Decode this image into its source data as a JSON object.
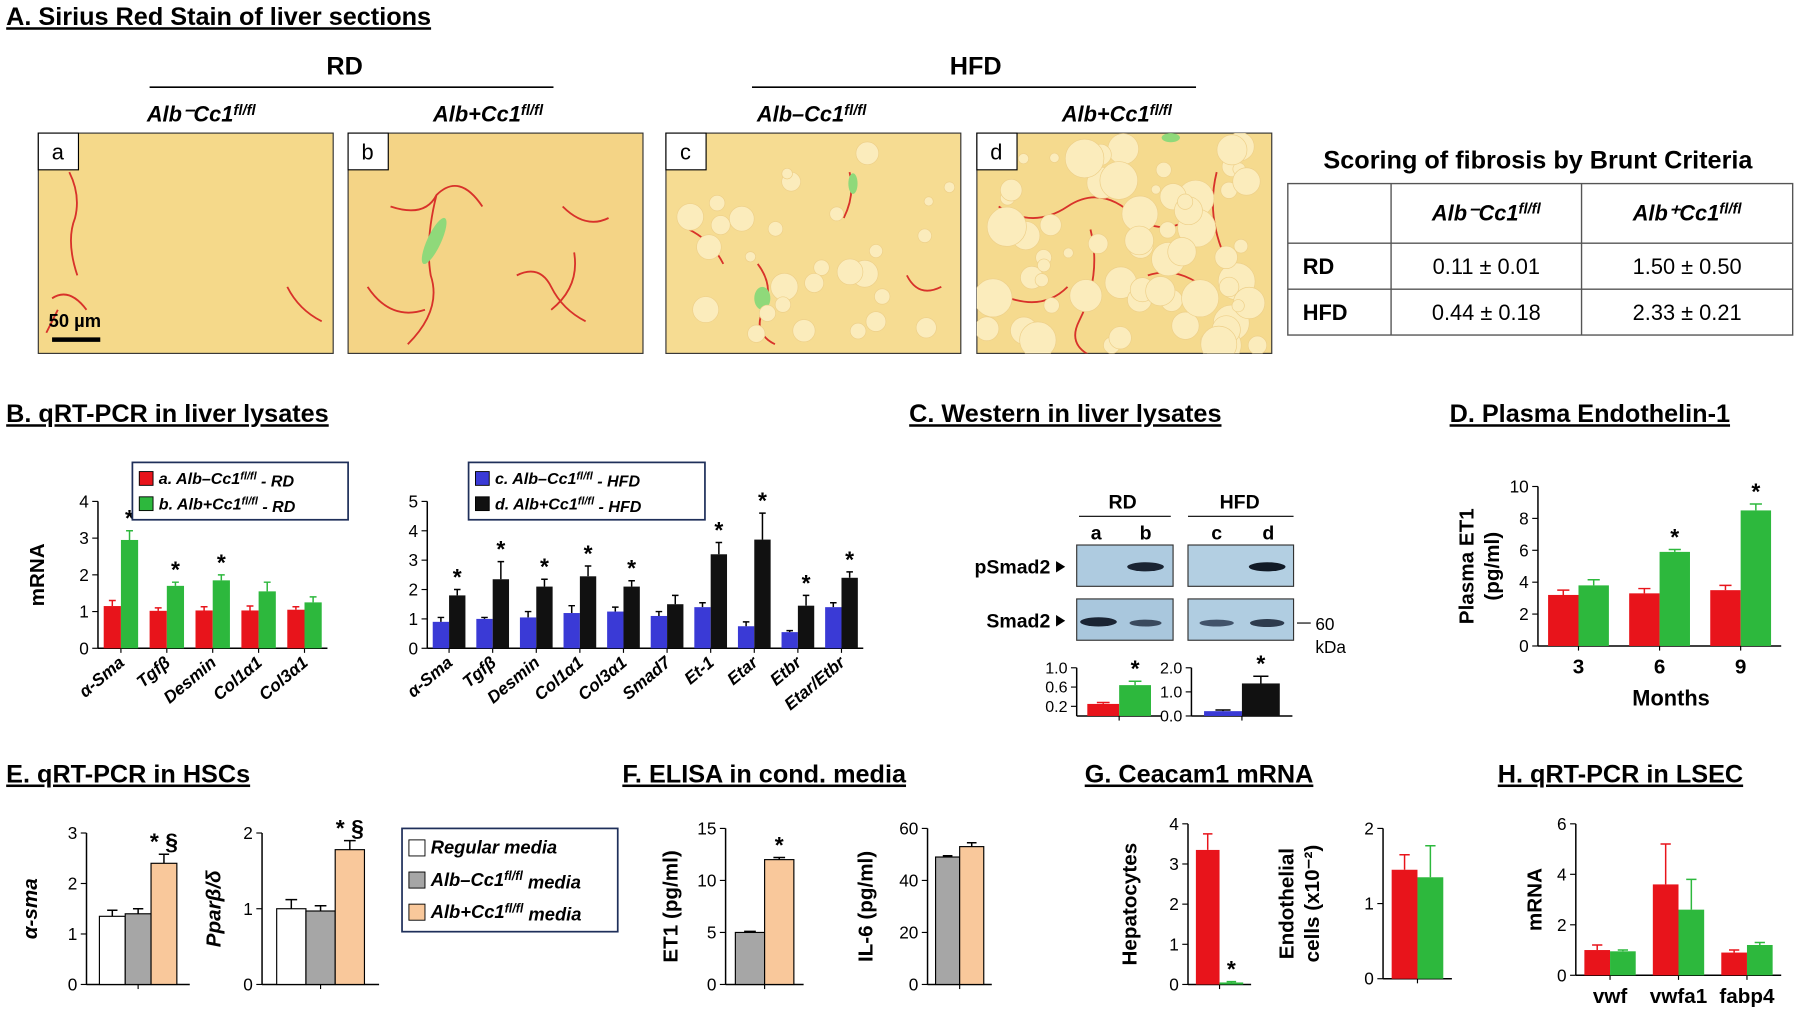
{
  "panel_titles": [
    "A. Sirius Red Stain of liver sections",
    "B. qRT-PCR in liver lysates",
    "C. Western in liver lysates",
    "D. Plasma Endothelin-1",
    "E. qRT-PCR in HSCs",
    "F. ELISA in cond. media",
    "G. Ceacam1 mRNA",
    "H. qRT-PCR in LSEC"
  ],
  "histology": {
    "groups": [
      "RD",
      "HFD"
    ],
    "images": [
      {
        "letter": "a",
        "label": [
          "Alb⁻Cc1",
          "fl/fl"
        ]
      },
      {
        "letter": "b",
        "label": [
          "Alb+Cc1",
          "fl/fl"
        ]
      },
      {
        "letter": "c",
        "label": [
          "Alb–Cc1",
          "fl/fl"
        ]
      },
      {
        "letter": "d",
        "label": [
          "Alb+Cc1",
          "fl/fl"
        ]
      }
    ],
    "scale_bar": "50 µm"
  },
  "fibrosis_table": {
    "title": "Scoring of fibrosis by Brunt Criteria",
    "columns": [
      [
        "Alb⁻Cc1",
        "fl/fl"
      ],
      [
        "Alb⁺Cc1",
        "fl/fl"
      ]
    ],
    "rows": [
      [
        "RD",
        "0.11 ± 0.01",
        "1.50 ± 0.50"
      ],
      [
        "HFD",
        "0.44 ± 0.18",
        "2.33 ± 0.21"
      ]
    ]
  },
  "western": {
    "groups": [
      "RD",
      "HFD"
    ],
    "lanes": [
      "a",
      "b",
      "c",
      "d"
    ],
    "blots": [
      "pSmad2",
      "Smad2"
    ],
    "marker": "60",
    "marker_unit": "kDa"
  },
  "chart_data": [
    {
      "type": "bar",
      "ylabel": "mRNA",
      "categories": [
        "α-Sma",
        "Tgfβ",
        "Desmin",
        "Col1α1",
        "Col3α1"
      ],
      "ylim": [
        0,
        4
      ],
      "yticks": [
        0,
        1,
        2,
        3,
        4
      ],
      "series": [
        {
          "name": [
            "a. Alb–Cc1",
            "fl/fl",
            " - RD"
          ],
          "color": "#e8141b",
          "values": [
            1.15,
            1.02,
            1.03,
            1.03,
            1.05
          ],
          "errors": [
            0.15,
            0.08,
            0.1,
            0.12,
            0.08
          ]
        },
        {
          "name": [
            "b. Alb+Cc1",
            "fl/fl",
            " - RD"
          ],
          "color": "#2db83d",
          "values": [
            2.95,
            1.7,
            1.85,
            1.55,
            1.25
          ],
          "errors": [
            0.25,
            0.1,
            0.15,
            0.25,
            0.15
          ],
          "markers": [
            "*",
            "*",
            "*",
            null,
            null
          ]
        }
      ]
    },
    {
      "type": "bar",
      "categories": [
        "α-Sma",
        "Tgfβ",
        "Desmin",
        "Col1α1",
        "Col3α1",
        "Smad7",
        "Et-1",
        "Etar",
        "Etbr",
        "Etar/Etbr"
      ],
      "ylim": [
        0,
        5
      ],
      "yticks": [
        0,
        1,
        2,
        3,
        4,
        5
      ],
      "series": [
        {
          "name": [
            "c. Alb–Cc1",
            "fl/fl",
            " - HFD"
          ],
          "color": "#3a3ad6",
          "values": [
            0.9,
            1.0,
            1.05,
            1.2,
            1.25,
            1.1,
            1.4,
            0.75,
            0.55,
            1.4
          ],
          "errors": [
            0.15,
            0.05,
            0.2,
            0.25,
            0.15,
            0.15,
            0.15,
            0.15,
            0.05,
            0.15
          ]
        },
        {
          "name": [
            "d. Alb+Cc1",
            "fl/fl",
            " - HFD"
          ],
          "color": "#111111",
          "values": [
            1.8,
            2.35,
            2.1,
            2.45,
            2.1,
            1.5,
            3.2,
            3.7,
            1.45,
            2.4
          ],
          "errors": [
            0.2,
            0.6,
            0.25,
            0.35,
            0.2,
            0.3,
            0.4,
            0.9,
            0.35,
            0.2
          ],
          "markers": [
            "*",
            "*",
            "*",
            "*",
            "*",
            null,
            "*",
            "*",
            "*",
            "*"
          ]
        }
      ]
    },
    {
      "type": "bar",
      "ylim": [
        0,
        1.0
      ],
      "yticks": [
        0.2,
        0.6,
        {
          "value": 1,
          "label": "1.0"
        }
      ],
      "series": [
        {
          "color": "#e8141b",
          "values": [
            0.25
          ],
          "errors": [
            0.03
          ]
        },
        {
          "color": "#2db83d",
          "values": [
            0.64
          ],
          "errors": [
            0.08
          ],
          "markers": [
            "*"
          ]
        }
      ]
    },
    {
      "type": "bar",
      "ylim": [
        0,
        2
      ],
      "yticks": [
        {
          "value": 0,
          "label": "0.0"
        },
        {
          "value": 1,
          "label": "1.0"
        },
        {
          "value": 2,
          "label": "2.0"
        }
      ],
      "series": [
        {
          "color": "#3a3ad6",
          "values": [
            0.2
          ],
          "errors": [
            0.05
          ]
        },
        {
          "color": "#111111",
          "values": [
            1.35
          ],
          "errors": [
            0.3
          ],
          "markers": [
            "*"
          ]
        }
      ]
    },
    {
      "type": "bar",
      "ylabel": [
        "Plasma ET1",
        "(pg/ml)"
      ],
      "xlabel": "Months",
      "categories": [
        "3",
        "6",
        "9"
      ],
      "ylim": [
        0,
        10
      ],
      "yticks": [
        0,
        2,
        4,
        6,
        8,
        10
      ],
      "series": [
        {
          "color": "#e8141b",
          "values": [
            3.2,
            3.3,
            3.5
          ],
          "errors": [
            0.3,
            0.3,
            0.3
          ]
        },
        {
          "color": "#2db83d",
          "values": [
            3.8,
            5.9,
            8.5
          ],
          "errors": [
            0.35,
            0.15,
            0.4
          ],
          "markers": [
            null,
            "*",
            "*"
          ]
        }
      ]
    },
    {
      "type": "bar",
      "ylabel": "α-sma",
      "ylim": [
        0,
        3
      ],
      "yticks": [
        0,
        1,
        2,
        3
      ],
      "series": [
        {
          "color": "#ffffff",
          "values": [
            1.35
          ],
          "errors": [
            0.12
          ]
        },
        {
          "color": "#a6a6a6",
          "values": [
            1.4
          ],
          "errors": [
            0.1
          ]
        },
        {
          "color": "#f9c89b",
          "values": [
            2.4
          ],
          "errors": [
            0.18
          ],
          "markers": [
            "* §"
          ]
        }
      ]
    },
    {
      "type": "bar",
      "ylabel": "Pparβ/δ",
      "ylim": [
        0,
        2
      ],
      "yticks": [
        0,
        1,
        2
      ],
      "series": [
        {
          "name": "Regular media",
          "color": "#ffffff",
          "values": [
            1.0
          ],
          "errors": [
            0.12
          ]
        },
        {
          "name": [
            "Alb–Cc1",
            "fl/fl",
            " media"
          ],
          "color": "#a6a6a6",
          "values": [
            0.97
          ],
          "errors": [
            0.07
          ]
        },
        {
          "name": [
            "Alb+Cc1",
            "fl/fl",
            " media"
          ],
          "color": "#f9c89b",
          "values": [
            1.78
          ],
          "errors": [
            0.12
          ],
          "markers": [
            "* §"
          ]
        }
      ]
    },
    {
      "type": "bar",
      "ylabel": "ET1 (pg/ml)",
      "ylim": [
        0,
        15
      ],
      "yticks": [
        0,
        5,
        10,
        15
      ],
      "series": [
        {
          "color": "#a6a6a6",
          "values": [
            5.0
          ],
          "errors": [
            0.1
          ]
        },
        {
          "color": "#f9c89b",
          "values": [
            12
          ],
          "errors": [
            0.2
          ],
          "markers": [
            "*"
          ]
        }
      ]
    },
    {
      "type": "bar",
      "ylabel": "IL-6 (pg/ml)",
      "ylim": [
        0,
        60
      ],
      "yticks": [
        0,
        20,
        40,
        60
      ],
      "series": [
        {
          "color": "#a6a6a6",
          "values": [
            49
          ],
          "errors": [
            0.5
          ]
        },
        {
          "color": "#f9c89b",
          "values": [
            53
          ],
          "errors": [
            1.5
          ]
        }
      ]
    },
    {
      "type": "bar",
      "ylabel": "Hepatocytes",
      "ylim": [
        0,
        4
      ],
      "yticks": [
        0,
        1,
        2,
        3,
        4
      ],
      "series": [
        {
          "color": "#e8141b",
          "values": [
            3.35
          ],
          "errors": [
            0.4
          ]
        },
        {
          "color": "#2db83d",
          "values": [
            0.05
          ],
          "errors": [
            0.02
          ],
          "markers": [
            "*"
          ]
        }
      ]
    },
    {
      "type": "bar",
      "ylabel": [
        "Endothelial",
        "cells (x10⁻²)"
      ],
      "ylim": [
        0,
        2
      ],
      "yticks": [
        0,
        1,
        2
      ],
      "series": [
        {
          "color": "#e8141b",
          "values": [
            1.45
          ],
          "errors": [
            0.2
          ]
        },
        {
          "color": "#2db83d",
          "values": [
            1.35
          ],
          "errors": [
            0.42
          ]
        }
      ]
    },
    {
      "type": "bar",
      "ylabel": "mRNA",
      "categories": [
        "vwf",
        "vwfa1",
        "fabp4"
      ],
      "ylim": [
        0,
        6
      ],
      "yticks": [
        0,
        2,
        4,
        6
      ],
      "series": [
        {
          "color": "#e8141b",
          "values": [
            1.0,
            3.6,
            0.9
          ],
          "errors": [
            0.2,
            1.6,
            0.1
          ]
        },
        {
          "color": "#2db83d",
          "values": [
            0.95,
            2.6,
            1.2
          ],
          "errors": [
            0.05,
            1.2,
            0.1
          ]
        }
      ]
    }
  ]
}
